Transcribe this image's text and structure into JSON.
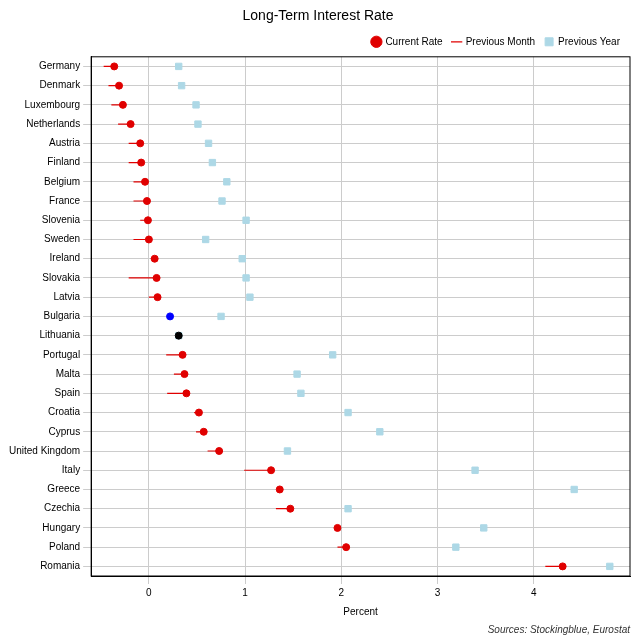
{
  "chart_data": {
    "type": "dot",
    "title": "Long-Term Interest Rate",
    "x_label": "Percent",
    "source": "Sources: Stockingblue, Eurostat",
    "orientation": "horizontal",
    "categories": [
      "Germany",
      "Denmark",
      "Luxembourg",
      "Netherlands",
      "Austria",
      "Finland",
      "Belgium",
      "France",
      "Slovenia",
      "Sweden",
      "Ireland",
      "Slovakia",
      "Latvia",
      "Bulgaria",
      "Lithuania",
      "Portugal",
      "Malta",
      "Spain",
      "Croatia",
      "Cyprus",
      "United Kingdom",
      "Italy",
      "Greece",
      "Czechia",
      "Hungary",
      "Poland",
      "Romania"
    ],
    "series": [
      {
        "name": "Current Rate",
        "marker": "circle",
        "colors": [
          "#e00000",
          "#e00000",
          "#e00000",
          "#e00000",
          "#e00000",
          "#e00000",
          "#e00000",
          "#e00000",
          "#e00000",
          "#e00000",
          "#e00000",
          "#e00000",
          "#e00000",
          "#0000ff",
          "#000000",
          "#e00000",
          "#e00000",
          "#e00000",
          "#e00000",
          "#e00000",
          "#e00000",
          "#e00000",
          "#e00000",
          "#e00000",
          "#e00000",
          "#e00000",
          "#e00000"
        ],
        "values": [
          -0.36,
          -0.31,
          -0.27,
          -0.19,
          -0.09,
          -0.08,
          -0.04,
          -0.02,
          -0.01,
          0.0,
          0.06,
          0.08,
          0.09,
          0.22,
          0.31,
          0.35,
          0.37,
          0.39,
          0.52,
          0.57,
          0.73,
          1.27,
          1.36,
          1.47,
          1.96,
          2.05,
          4.3
        ]
      },
      {
        "name": "Previous Month",
        "marker": "line",
        "color": "#e00000",
        "values": [
          -0.47,
          -0.42,
          -0.39,
          -0.32,
          -0.21,
          -0.21,
          -0.16,
          -0.16,
          -0.09,
          -0.16,
          0.02,
          -0.21,
          0.0,
          0.22,
          0.31,
          0.18,
          0.26,
          0.19,
          0.47,
          0.49,
          0.61,
          0.99,
          1.34,
          1.32,
          1.94,
          1.96,
          4.12
        ]
      },
      {
        "name": "Previous Year",
        "marker": "square",
        "color": "#add8e6",
        "values": [
          0.31,
          0.34,
          0.49,
          0.51,
          0.62,
          0.66,
          0.81,
          0.76,
          1.01,
          0.59,
          0.97,
          1.01,
          1.05,
          0.75,
          0.31,
          1.91,
          1.54,
          1.58,
          2.07,
          2.4,
          1.44,
          3.39,
          4.42,
          2.07,
          3.48,
          3.19,
          4.79
        ]
      }
    ],
    "xlim": [
      -0.6,
      5.0
    ],
    "xticks": [
      0,
      1,
      2,
      3,
      4
    ],
    "grid": true,
    "legend": "top-right"
  }
}
